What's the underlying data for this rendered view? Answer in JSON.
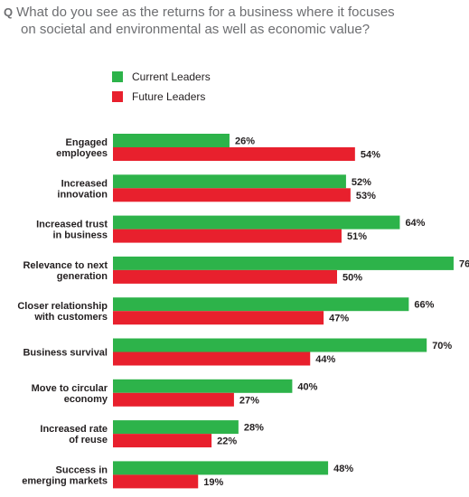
{
  "question": {
    "marker": "Q",
    "line1": "What do you see as the returns for a business where it focuses",
    "line2": "on societal and environmental as well as economic value?"
  },
  "colors": {
    "current": "#2db34a",
    "future": "#e8202d"
  },
  "chart_data": {
    "type": "bar",
    "orientation": "horizontal",
    "title": "What do you see as the returns for a business where it focuses on societal and environmental as well as economic value?",
    "xlim": [
      0,
      80
    ],
    "grid": false,
    "legend_position": "top-left",
    "value_suffix": "%",
    "categories": [
      [
        "Engaged",
        "employees"
      ],
      [
        "Increased",
        "innovation"
      ],
      [
        "Increased trust",
        "in business"
      ],
      [
        "Relevance to next",
        "generation"
      ],
      [
        "Closer relationship",
        "with customers"
      ],
      [
        "Business survival"
      ],
      [
        "Move to circular",
        "economy"
      ],
      [
        "Increased rate",
        "of reuse"
      ],
      [
        "Success in",
        "emerging markets"
      ]
    ],
    "series": [
      {
        "name": "Current Leaders",
        "values": [
          26,
          52,
          64,
          76,
          66,
          70,
          40,
          28,
          48
        ]
      },
      {
        "name": "Future Leaders",
        "values": [
          54,
          53,
          51,
          50,
          47,
          44,
          27,
          22,
          19
        ]
      }
    ]
  }
}
